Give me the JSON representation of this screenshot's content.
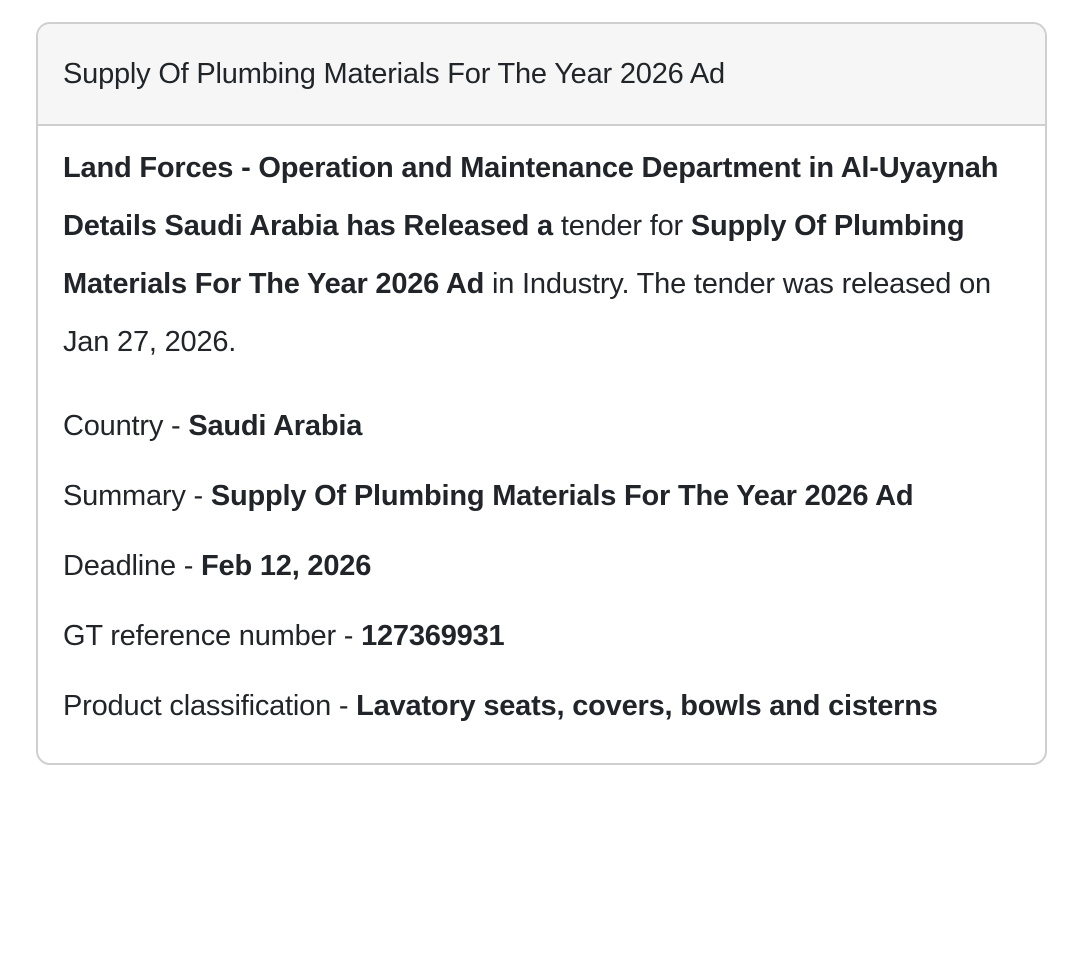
{
  "card": {
    "header": {
      "title": "Supply Of Plumbing Materials For The Year 2026 Ad"
    },
    "description": {
      "bold_intro": "Land Forces - Operation and Maintenance Department in Al-Uyaynah Details Saudi Arabia has Released a",
      "regular_mid": " tender for ",
      "bold_tender_title": "Supply Of Plumbing Materials For The Year 2026 Ad",
      "regular_end": " in Industry. The tender was released on Jan 27, 2026."
    },
    "fields": [
      {
        "label": "Country - ",
        "value": "Saudi Arabia"
      },
      {
        "label": "Summary - ",
        "value": "Supply Of Plumbing Materials For The Year 2026 Ad"
      },
      {
        "label": "Deadline - ",
        "value": "Feb 12, 2026"
      },
      {
        "label": "GT reference number - ",
        "value": "127369931"
      },
      {
        "label": "Product classification - ",
        "value": "Lavatory seats, covers, bowls and cisterns"
      }
    ]
  },
  "colors": {
    "text": "#212529",
    "card_border": "#cfcfcf",
    "header_background": "#f6f6f6",
    "page_background": "#ffffff"
  }
}
